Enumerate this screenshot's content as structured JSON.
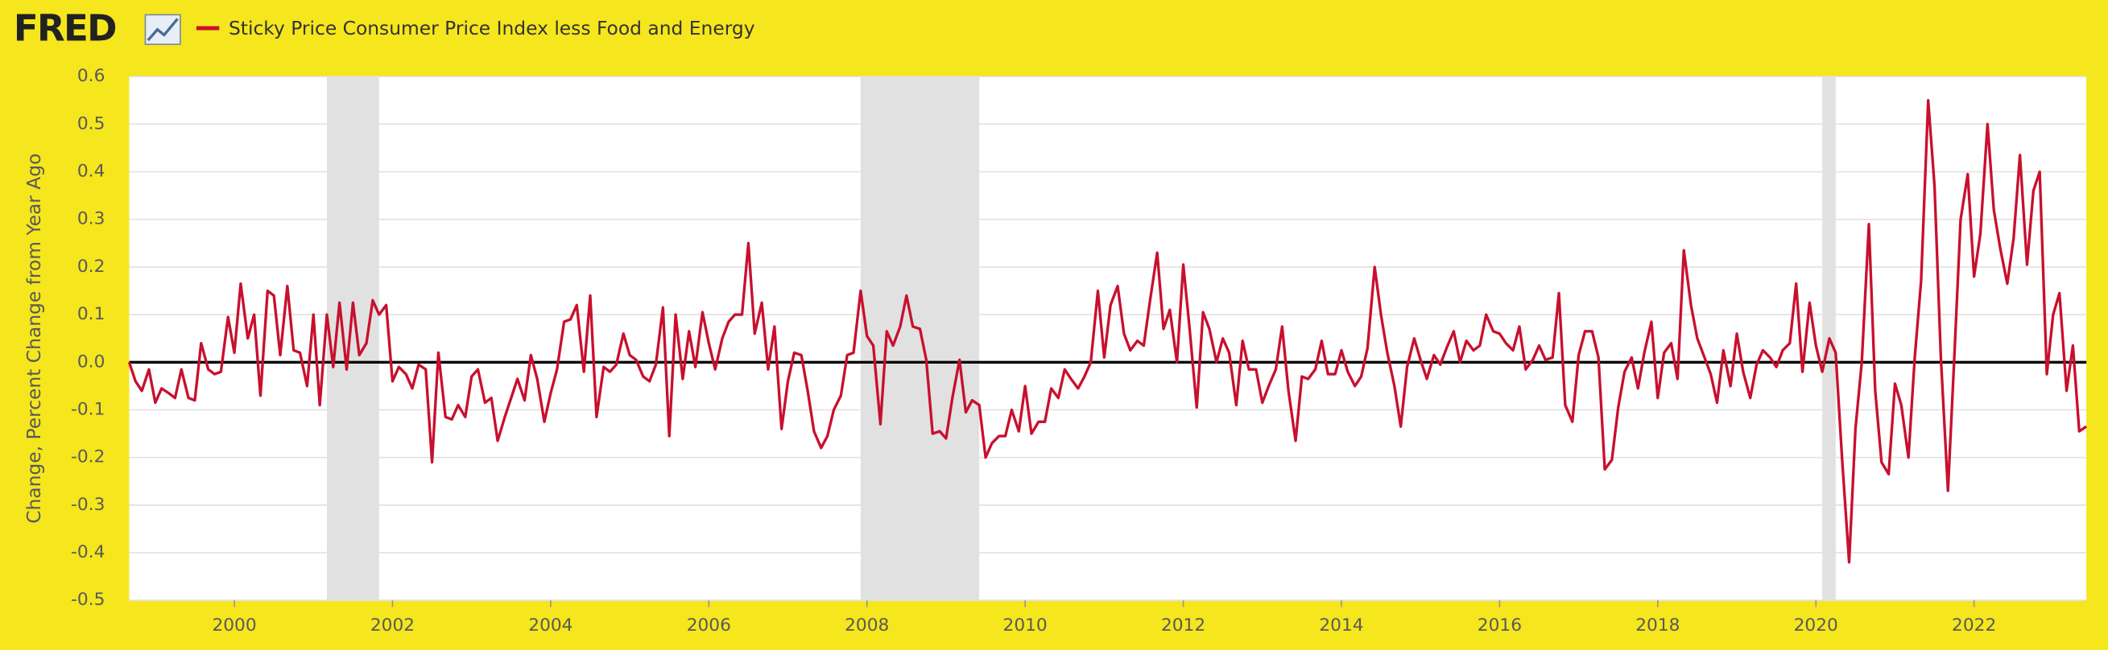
{
  "logo": "FRED",
  "chart_data": {
    "type": "line",
    "ylabel": "Change, Percent Change from Year Ago",
    "xlim": [
      1998.67,
      2023.42
    ],
    "ylim": [
      -0.5,
      0.6
    ],
    "xticks": [
      2000,
      2002,
      2004,
      2006,
      2008,
      2010,
      2012,
      2014,
      2016,
      2018,
      2020,
      2022
    ],
    "yticks": [
      -0.5,
      -0.4,
      -0.3,
      -0.2,
      -0.1,
      {
        "value": 0,
        "label": "0.0"
      },
      0.1,
      0.2,
      0.3,
      0.4,
      0.5,
      0.6
    ],
    "grid": true,
    "recessions": [
      [
        2001.17,
        2001.83
      ],
      [
        2007.92,
        2009.42
      ],
      [
        2020.08,
        2020.25
      ]
    ],
    "recession_color": "#e1e1e1",
    "series": [
      {
        "name": "Sticky Price Consumer Price Index less Food and Energy",
        "color": "#c8102e",
        "x": [
          1998.67,
          1998.75,
          1998.83,
          1998.92,
          1999.0,
          1999.08,
          1999.17,
          1999.25,
          1999.33,
          1999.42,
          1999.5,
          1999.58,
          1999.67,
          1999.75,
          1999.83,
          1999.92,
          2000.0,
          2000.08,
          2000.17,
          2000.25,
          2000.33,
          2000.42,
          2000.5,
          2000.58,
          2000.67,
          2000.75,
          2000.83,
          2000.92,
          2001.0,
          2001.08,
          2001.17,
          2001.25,
          2001.33,
          2001.42,
          2001.5,
          2001.58,
          2001.67,
          2001.75,
          2001.83,
          2001.92,
          2002.0,
          2002.08,
          2002.17,
          2002.25,
          2002.33,
          2002.42,
          2002.5,
          2002.58,
          2002.67,
          2002.75,
          2002.83,
          2002.92,
          2003.0,
          2003.08,
          2003.17,
          2003.25,
          2003.33,
          2003.42,
          2003.5,
          2003.58,
          2003.67,
          2003.75,
          2003.83,
          2003.92,
          2004.0,
          2004.08,
          2004.17,
          2004.25,
          2004.33,
          2004.42,
          2004.5,
          2004.58,
          2004.67,
          2004.75,
          2004.83,
          2004.92,
          2005.0,
          2005.08,
          2005.17,
          2005.25,
          2005.33,
          2005.42,
          2005.5,
          2005.58,
          2005.67,
          2005.75,
          2005.83,
          2005.92,
          2006.0,
          2006.08,
          2006.17,
          2006.25,
          2006.33,
          2006.42,
          2006.5,
          2006.58,
          2006.67,
          2006.75,
          2006.83,
          2006.92,
          2007.0,
          2007.08,
          2007.17,
          2007.25,
          2007.33,
          2007.42,
          2007.5,
          2007.58,
          2007.67,
          2007.75,
          2007.83,
          2007.92,
          2008.0,
          2008.08,
          2008.17,
          2008.25,
          2008.33,
          2008.42,
          2008.5,
          2008.58,
          2008.67,
          2008.75,
          2008.83,
          2008.92,
          2009.0,
          2009.08,
          2009.17,
          2009.25,
          2009.33,
          2009.42,
          2009.5,
          2009.58,
          2009.67,
          2009.75,
          2009.83,
          2009.92,
          2010.0,
          2010.08,
          2010.17,
          2010.25,
          2010.33,
          2010.42,
          2010.5,
          2010.58,
          2010.67,
          2010.75,
          2010.83,
          2010.92,
          2011.0,
          2011.08,
          2011.17,
          2011.25,
          2011.33,
          2011.42,
          2011.5,
          2011.58,
          2011.67,
          2011.75,
          2011.83,
          2011.92,
          2012.0,
          2012.08,
          2012.17,
          2012.25,
          2012.33,
          2012.42,
          2012.5,
          2012.58,
          2012.67,
          2012.75,
          2012.83,
          2012.92,
          2013.0,
          2013.08,
          2013.17,
          2013.25,
          2013.33,
          2013.42,
          2013.5,
          2013.58,
          2013.67,
          2013.75,
          2013.83,
          2013.92,
          2014.0,
          2014.08,
          2014.17,
          2014.25,
          2014.33,
          2014.42,
          2014.5,
          2014.58,
          2014.67,
          2014.75,
          2014.83,
          2014.92,
          2015.0,
          2015.08,
          2015.17,
          2015.25,
          2015.33,
          2015.42,
          2015.5,
          2015.58,
          2015.67,
          2015.75,
          2015.83,
          2015.92,
          2016.0,
          2016.08,
          2016.17,
          2016.25,
          2016.33,
          2016.42,
          2016.5,
          2016.58,
          2016.67,
          2016.75,
          2016.83,
          2016.92,
          2017.0,
          2017.08,
          2017.17,
          2017.25,
          2017.33,
          2017.42,
          2017.5,
          2017.58,
          2017.67,
          2017.75,
          2017.83,
          2017.92,
          2018.0,
          2018.08,
          2018.17,
          2018.25,
          2018.33,
          2018.42,
          2018.5,
          2018.58,
          2018.67,
          2018.75,
          2018.83,
          2018.92,
          2019.0,
          2019.08,
          2019.17,
          2019.25,
          2019.33,
          2019.42,
          2019.5,
          2019.58,
          2019.67,
          2019.75,
          2019.83,
          2019.92,
          2020.0,
          2020.08,
          2020.17,
          2020.25,
          2020.33,
          2020.42,
          2020.5,
          2020.58,
          2020.67,
          2020.75,
          2020.83,
          2020.92,
          2021.0,
          2021.08,
          2021.17,
          2021.25,
          2021.33,
          2021.42,
          2021.5,
          2021.58,
          2021.67,
          2021.75,
          2021.83,
          2021.92,
          2022.0,
          2022.08,
          2022.17,
          2022.25,
          2022.33,
          2022.42,
          2022.5,
          2022.58,
          2022.67,
          2022.75,
          2022.83,
          2022.92,
          2023.0,
          2023.08,
          2023.17,
          2023.25,
          2023.33,
          2023.42
        ],
        "values": [
          0.0,
          -0.04,
          -0.06,
          -0.015,
          -0.085,
          -0.055,
          -0.065,
          -0.075,
          -0.015,
          -0.075,
          -0.08,
          0.04,
          -0.015,
          -0.025,
          -0.02,
          0.095,
          0.02,
          0.165,
          0.05,
          0.1,
          -0.07,
          0.15,
          0.14,
          0.015,
          0.16,
          0.025,
          0.02,
          -0.05,
          0.1,
          -0.09,
          0.1,
          -0.01,
          0.125,
          -0.015,
          0.125,
          0.015,
          0.04,
          0.13,
          0.1,
          0.12,
          -0.04,
          -0.01,
          -0.025,
          -0.055,
          -0.005,
          -0.015,
          -0.21,
          0.02,
          -0.115,
          -0.12,
          -0.09,
          -0.115,
          -0.03,
          -0.015,
          -0.085,
          -0.075,
          -0.165,
          -0.115,
          -0.075,
          -0.035,
          -0.08,
          0.015,
          -0.035,
          -0.125,
          -0.065,
          -0.015,
          0.085,
          0.09,
          0.12,
          -0.02,
          0.14,
          -0.115,
          -0.01,
          -0.02,
          -0.005,
          0.06,
          0.015,
          0.005,
          -0.03,
          -0.04,
          -0.005,
          0.115,
          -0.155,
          0.1,
          -0.035,
          0.065,
          -0.01,
          0.105,
          0.04,
          -0.015,
          0.05,
          0.085,
          0.1,
          0.1,
          0.25,
          0.06,
          0.125,
          -0.015,
          0.075,
          -0.14,
          -0.04,
          0.02,
          0.015,
          -0.06,
          -0.145,
          -0.18,
          -0.155,
          -0.1,
          -0.07,
          0.015,
          0.02,
          0.15,
          0.055,
          0.035,
          -0.13,
          0.065,
          0.035,
          0.075,
          0.14,
          0.075,
          0.07,
          0.005,
          -0.15,
          -0.145,
          -0.16,
          -0.075,
          0.005,
          -0.105,
          -0.08,
          -0.09,
          -0.2,
          -0.17,
          -0.155,
          -0.155,
          -0.1,
          -0.145,
          -0.05,
          -0.15,
          -0.125,
          -0.125,
          -0.055,
          -0.075,
          -0.015,
          -0.035,
          -0.055,
          -0.03,
          0.0,
          0.15,
          0.01,
          0.12,
          0.16,
          0.06,
          0.025,
          0.045,
          0.035,
          0.13,
          0.23,
          0.07,
          0.11,
          0.0,
          0.205,
          0.07,
          -0.095,
          0.105,
          0.07,
          0.0,
          0.05,
          0.02,
          -0.09,
          0.045,
          -0.015,
          -0.015,
          -0.085,
          -0.05,
          -0.015,
          0.075,
          -0.06,
          -0.165,
          -0.03,
          -0.035,
          -0.015,
          0.045,
          -0.025,
          -0.025,
          0.025,
          -0.02,
          -0.05,
          -0.03,
          0.03,
          0.2,
          0.1,
          0.02,
          -0.05,
          -0.135,
          -0.01,
          0.05,
          0.005,
          -0.035,
          0.015,
          -0.005,
          0.03,
          0.065,
          0.0,
          0.045,
          0.025,
          0.035,
          0.1,
          0.065,
          0.06,
          0.04,
          0.025,
          0.075,
          -0.015,
          0.005,
          0.035,
          0.005,
          0.01,
          0.145,
          -0.09,
          -0.125,
          0.015,
          0.065,
          0.065,
          0.01,
          -0.225,
          -0.205,
          -0.095,
          -0.02,
          0.01,
          -0.055,
          0.02,
          0.085,
          -0.075,
          0.02,
          0.04,
          -0.035,
          0.235,
          0.12,
          0.05,
          0.015,
          -0.025,
          -0.085,
          0.025,
          -0.05,
          0.06,
          -0.02,
          -0.075,
          -0.005,
          0.025,
          0.01,
          -0.01,
          0.025,
          0.04,
          0.165,
          -0.02,
          0.125,
          0.035,
          -0.02,
          0.05,
          0.02,
          -0.2,
          -0.42,
          -0.14,
          0.0,
          0.29,
          -0.06,
          -0.21,
          -0.235,
          -0.045,
          -0.09,
          -0.2,
          0.01,
          0.17,
          0.55,
          0.37,
          0.01,
          -0.27,
          0.01,
          0.3,
          0.395,
          0.18,
          0.27,
          0.5,
          0.32,
          0.24,
          0.165,
          0.26,
          0.435,
          0.205,
          0.36,
          0.4,
          -0.025,
          0.1,
          0.145,
          -0.06,
          0.035,
          -0.145,
          -0.135
        ]
      }
    ]
  }
}
